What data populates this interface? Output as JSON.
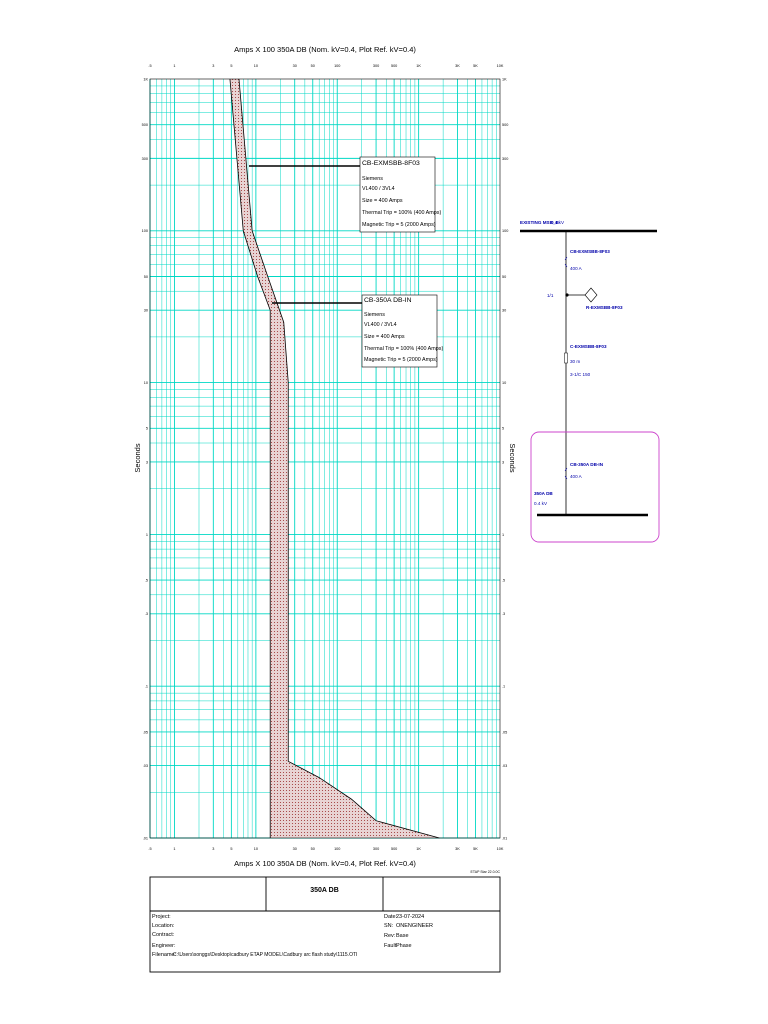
{
  "chart_data": {
    "type": "line",
    "title": "Amps  X  100   350A DB (Nom. kV=0.4, Plot Ref. kV=0.4)",
    "xlabel": "Amps  X  100   350A DB (Nom. kV=0.4, Plot Ref. kV=0.4)",
    "ylabel": "Seconds",
    "x_scale": "log",
    "y_scale": "log",
    "xlim": [
      0.5,
      10000
    ],
    "ylim": [
      0.01,
      1000
    ],
    "grid": true,
    "x_ticks": [
      {
        "v": 0.5,
        "label": ".5"
      },
      {
        "v": 1,
        "label": "1"
      },
      {
        "v": 3,
        "label": "3"
      },
      {
        "v": 5,
        "label": "5"
      },
      {
        "v": 10,
        "label": "10"
      },
      {
        "v": 30,
        "label": "30"
      },
      {
        "v": 50,
        "label": "50"
      },
      {
        "v": 100,
        "label": "100"
      },
      {
        "v": 300,
        "label": "300"
      },
      {
        "v": 500,
        "label": "500"
      },
      {
        "v": 1000,
        "label": "1K"
      },
      {
        "v": 3000,
        "label": "3K"
      },
      {
        "v": 5000,
        "label": "5K"
      },
      {
        "v": 10000,
        "label": "10K"
      }
    ],
    "y_ticks": [
      {
        "v": 1000,
        "label": "1K"
      },
      {
        "v": 500,
        "label": "500"
      },
      {
        "v": 300,
        "label": "300"
      },
      {
        "v": 100,
        "label": "100"
      },
      {
        "v": 50,
        "label": "50"
      },
      {
        "v": 30,
        "label": "30"
      },
      {
        "v": 10,
        "label": "10"
      },
      {
        "v": 5,
        "label": "5"
      },
      {
        "v": 3,
        "label": "3"
      },
      {
        "v": 1,
        "label": "1"
      },
      {
        "v": 0.5,
        "label": ".5"
      },
      {
        "v": 0.3,
        "label": ".3"
      },
      {
        "v": 0.1,
        "label": ".1"
      },
      {
        "v": 0.05,
        "label": ".05"
      },
      {
        "v": 0.03,
        "label": ".03"
      },
      {
        "v": 0.01,
        "label": ".01"
      }
    ],
    "series": [
      {
        "name": "CB-EXMSBB-8F03",
        "band_left": [
          [
            4.8,
            1000
          ],
          [
            7,
            100
          ],
          [
            10.5,
            50
          ],
          [
            15,
            30
          ],
          [
            15,
            0.01
          ]
        ],
        "band_right": [
          [
            6.2,
            1000
          ],
          [
            9,
            100
          ],
          [
            14,
            50
          ],
          [
            22,
            25
          ],
          [
            25,
            10
          ],
          [
            25,
            0.032
          ],
          [
            60,
            0.025
          ],
          [
            150,
            0.018
          ],
          [
            300,
            0.013
          ],
          [
            1800,
            0.01
          ]
        ]
      }
    ],
    "annotations": [
      {
        "title": "CB-EXMSBB-8F03",
        "lines": [
          "Siemens",
          "VL400 / 3VL4",
          "Size = 400 Amps",
          "Thermal Trip = 100% (400 Amps)",
          "Magnetic Trip = 5 (2000 Amps)"
        ]
      },
      {
        "title": "CB-350A DB-IN",
        "lines": [
          "Siemens",
          "VL400 / 3VL4",
          "Size = 400 Amps",
          "Thermal Trip = 100% (400 Amps)",
          "Magnetic Trip = 5 (2000 Amps)"
        ]
      }
    ],
    "footer_note": "ETAP Star 22.0.0C"
  },
  "colors": {
    "grid": "#00d8c4",
    "diagram_text": "#0000aa",
    "highlight_box": "#cc44cc",
    "band_fill": "#e8d4d4",
    "band_dot": "#9a2a2a"
  },
  "diagram": {
    "bus_top_label": "EXISTING MSB_B",
    "bus_top_kv": "0.4 kV",
    "breaker1_name": "CB-EXMSBB-8F03",
    "breaker1_rating": "400 A",
    "relay_ratio": "1/1",
    "relay_name": "R-EXMSBB-8F03",
    "cable_name": "C-EXMSBB-8F03",
    "cable_length": "30 m",
    "cable_spec": "3-1/C 150",
    "breaker2_name": "CB-350A DB-IN",
    "breaker2_rating": "400 A",
    "bus_bottom_label": "350A DB",
    "bus_bottom_kv": "0.4 kV"
  },
  "titleblock": {
    "center_title": "350A  DB",
    "project_label": "Project:",
    "location_label": "Location:",
    "contract_label": "Contract:",
    "engineer_label": "Engineer:",
    "filename_label": "Filename:",
    "filename_value": "C:\\Users\\songgs\\Desktop\\cadbury ETAP MODEL\\Cadbury arc flash study\\1115.OTI",
    "date_label": "Date:",
    "date_value": "23-07-2024",
    "sn_label": "SN:",
    "sn_value": "ONENGINEER",
    "rev_label": "Rev:",
    "rev_value": "Base",
    "fault_label": "Fault:",
    "fault_value": "Phase"
  }
}
